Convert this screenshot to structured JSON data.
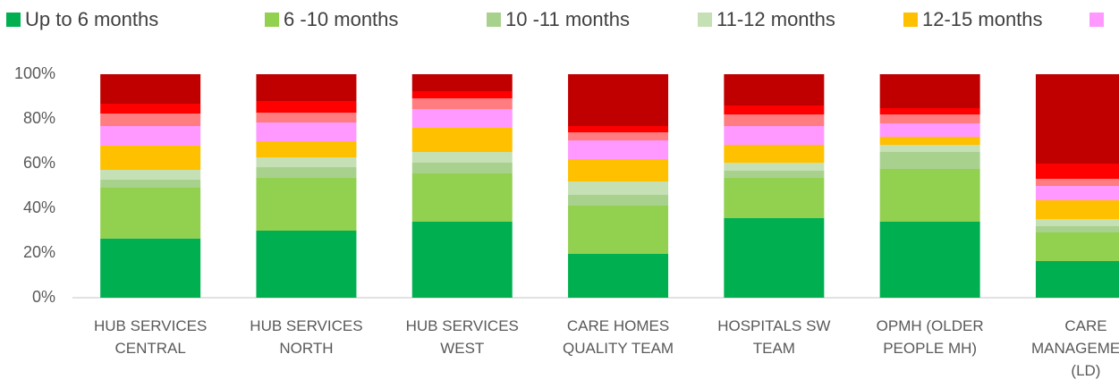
{
  "chart_data": {
    "type": "stacked_bar",
    "categories": [
      "HUB SERVICES CENTRAL",
      "HUB SERVICES NORTH",
      "HUB SERVICES WEST",
      "CARE HOMES QUALITY TEAM",
      "HOSPITALS SW TEAM",
      "OPMH (OLDER PEOPLE MH)",
      "CARE MANAGEMENT (LD)"
    ],
    "series": [
      {
        "name": "Up to 6 months",
        "color": "#00b050",
        "values": [
          26.5,
          30,
          34,
          19.6,
          35.6,
          34,
          16.4
        ]
      },
      {
        "name": "6 -10 months",
        "color": "#92d050",
        "values": [
          23,
          23.6,
          21.6,
          21.6,
          18,
          23.6,
          12.8
        ]
      },
      {
        "name": "10 -11 months",
        "color": "#a9d18e",
        "values": [
          3.3,
          4.8,
          4.8,
          4.8,
          3.2,
          7.6,
          2.8
        ]
      },
      {
        "name": "11-12 months",
        "color": "#c5e0b4",
        "values": [
          4.4,
          4.4,
          4.8,
          6,
          3.6,
          3.2,
          3.2
        ]
      },
      {
        "name": "12-15 months",
        "color": "#ffc000",
        "values": [
          10.8,
          7.2,
          10.8,
          10,
          8,
          3.6,
          8.4
        ]
      },
      {
        "color": "#ff99ff",
        "values": [
          8.8,
          8.4,
          8.4,
          8.4,
          8.4,
          6,
          6.4
        ]
      },
      {
        "color": "#ff7c80",
        "values": [
          5.6,
          4.4,
          4.8,
          3.6,
          5.2,
          4,
          3.2
        ]
      },
      {
        "color": "#ff0000",
        "values": [
          4.4,
          5.2,
          3.2,
          2.8,
          4,
          2.8,
          6.8
        ]
      },
      {
        "color": "#c00000",
        "values": [
          13.2,
          12,
          7.6,
          23.2,
          14,
          15.2,
          40
        ]
      }
    ],
    "ylim": [
      0,
      100
    ],
    "yticks": [
      {
        "value": 0,
        "label": "0%"
      },
      {
        "value": 20,
        "label": "20%"
      },
      {
        "value": 40,
        "label": "40%"
      },
      {
        "value": 60,
        "label": "60%"
      },
      {
        "value": 80,
        "label": "80%"
      },
      {
        "value": 100,
        "label": "100%"
      }
    ],
    "grid": false,
    "legend": "top"
  }
}
